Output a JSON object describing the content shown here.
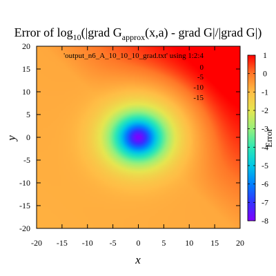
{
  "chart_data": {
    "type": "heatmap",
    "title_parts": {
      "prefix": "Error of log",
      "sub10": "10",
      "mid": "(|grad G",
      "sub_approx": "approx",
      "suffix": "(x,a) - grad G|/|grad G|)"
    },
    "xlabel": "x",
    "ylabel": "y",
    "xlim": [
      -20,
      20
    ],
    "ylim": [
      -20,
      20
    ],
    "xticks": [
      "-20",
      "-15",
      "-10",
      "-5",
      "0",
      "5",
      "10",
      "15",
      "20"
    ],
    "yticks": [
      "-20",
      "-15",
      "-10",
      "-5",
      "0",
      "5",
      "10",
      "15",
      "20"
    ],
    "colorbar": {
      "label": "Error",
      "range": [
        -8,
        1
      ],
      "ticks": [
        "1",
        "0",
        "-1",
        "-2",
        "-3",
        "-4",
        "-5",
        "-6",
        "-7",
        "-8"
      ]
    },
    "legend": {
      "placement": "top-right",
      "source": "'output_n6_A_10_10_10_grad.txt' using 1:2:4",
      "contour_levels": [
        "0",
        "-5",
        "-10",
        "-15"
      ]
    },
    "field": {
      "minimum_at": [
        0,
        0
      ],
      "minimum_value": -8,
      "maximum_region": "top-right",
      "maximum_value": 1
    },
    "palette": "rainbow (purple low → red high)"
  }
}
